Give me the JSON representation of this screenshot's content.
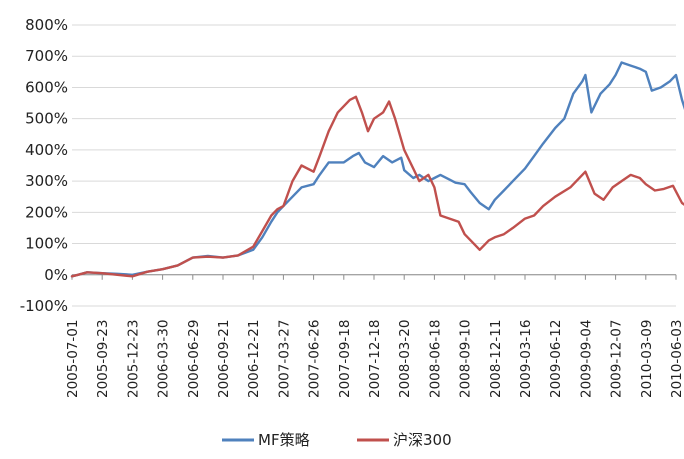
{
  "chart_data": {
    "type": "line",
    "title": "",
    "xlabel": "",
    "ylabel": "",
    "ylim": [
      -100,
      800
    ],
    "ytick_labels": [
      "-100%",
      "0%",
      "100%",
      "200%",
      "300%",
      "400%",
      "500%",
      "600%",
      "700%",
      "800%"
    ],
    "x": [
      "2005-07-01",
      "2005-09-23",
      "2005-12-23",
      "2006-03-30",
      "2006-06-29",
      "2006-09-21",
      "2006-12-21",
      "2007-03-27",
      "2007-06-26",
      "2007-09-18",
      "2007-12-18",
      "2008-03-20",
      "2008-06-18",
      "2008-09-10",
      "2008-12-11",
      "2009-03-16",
      "2009-06-12",
      "2009-09-04",
      "2009-12-07",
      "2010-03-09",
      "2010-06-03"
    ],
    "grid": true,
    "legend_position": "bottom",
    "series": [
      {
        "name": "MF策略",
        "color": "#4f81bd",
        "values": [
          [
            0,
            -5
          ],
          [
            0.2,
            0
          ],
          [
            0.5,
            8
          ],
          [
            1,
            5
          ],
          [
            1.5,
            3
          ],
          [
            2,
            0
          ],
          [
            2.5,
            10
          ],
          [
            3,
            18
          ],
          [
            3.5,
            30
          ],
          [
            4,
            55
          ],
          [
            4.5,
            60
          ],
          [
            5,
            55
          ],
          [
            5.5,
            62
          ],
          [
            6,
            80
          ],
          [
            6.3,
            120
          ],
          [
            6.6,
            170
          ],
          [
            6.8,
            200
          ],
          [
            7,
            220
          ],
          [
            7.3,
            250
          ],
          [
            7.6,
            280
          ],
          [
            8,
            290
          ],
          [
            8.2,
            320
          ],
          [
            8.5,
            360
          ],
          [
            8.8,
            360
          ],
          [
            9,
            360
          ],
          [
            9.3,
            380
          ],
          [
            9.5,
            390
          ],
          [
            9.7,
            360
          ],
          [
            10,
            345
          ],
          [
            10.3,
            380
          ],
          [
            10.6,
            360
          ],
          [
            10.9,
            375
          ],
          [
            11,
            335
          ],
          [
            11.3,
            310
          ],
          [
            11.5,
            320
          ],
          [
            11.8,
            300
          ],
          [
            12,
            310
          ],
          [
            12.2,
            320
          ],
          [
            12.5,
            305
          ],
          [
            12.7,
            295
          ],
          [
            13,
            290
          ],
          [
            13.2,
            265
          ],
          [
            13.5,
            230
          ],
          [
            13.8,
            210
          ],
          [
            14,
            240
          ],
          [
            14.3,
            270
          ],
          [
            14.6,
            300
          ],
          [
            15,
            340
          ],
          [
            15.3,
            380
          ],
          [
            15.6,
            420
          ],
          [
            16,
            470
          ],
          [
            16.3,
            500
          ],
          [
            16.6,
            580
          ],
          [
            16.9,
            620
          ],
          [
            17,
            640
          ],
          [
            17.2,
            520
          ],
          [
            17.5,
            580
          ],
          [
            17.8,
            610
          ],
          [
            18,
            640
          ],
          [
            18.2,
            680
          ],
          [
            18.5,
            670
          ],
          [
            18.8,
            660
          ],
          [
            19,
            650
          ],
          [
            19.2,
            590
          ],
          [
            19.5,
            600
          ],
          [
            19.8,
            620
          ],
          [
            20,
            640
          ],
          [
            20.2,
            560
          ],
          [
            20.4,
            500
          ],
          [
            20.6,
            520
          ],
          [
            20.8,
            515
          ],
          [
            21,
            520
          ]
        ]
      },
      {
        "name": "沪深300",
        "color": "#c0504d",
        "values": [
          [
            0,
            -5
          ],
          [
            0.2,
            0
          ],
          [
            0.5,
            8
          ],
          [
            1,
            5
          ],
          [
            1.5,
            0
          ],
          [
            2,
            -5
          ],
          [
            2.5,
            10
          ],
          [
            3,
            18
          ],
          [
            3.5,
            30
          ],
          [
            4,
            55
          ],
          [
            4.5,
            58
          ],
          [
            5,
            55
          ],
          [
            5.5,
            62
          ],
          [
            6,
            90
          ],
          [
            6.3,
            140
          ],
          [
            6.6,
            190
          ],
          [
            6.8,
            210
          ],
          [
            7,
            220
          ],
          [
            7.3,
            300
          ],
          [
            7.6,
            350
          ],
          [
            8,
            330
          ],
          [
            8.2,
            380
          ],
          [
            8.5,
            460
          ],
          [
            8.8,
            520
          ],
          [
            9,
            540
          ],
          [
            9.2,
            560
          ],
          [
            9.4,
            570
          ],
          [
            9.6,
            520
          ],
          [
            9.8,
            460
          ],
          [
            10,
            500
          ],
          [
            10.3,
            520
          ],
          [
            10.5,
            555
          ],
          [
            10.7,
            500
          ],
          [
            11,
            400
          ],
          [
            11.3,
            340
          ],
          [
            11.5,
            300
          ],
          [
            11.8,
            320
          ],
          [
            12,
            280
          ],
          [
            12.2,
            190
          ],
          [
            12.5,
            180
          ],
          [
            12.8,
            170
          ],
          [
            13,
            130
          ],
          [
            13.3,
            100
          ],
          [
            13.5,
            80
          ],
          [
            13.8,
            110
          ],
          [
            14,
            120
          ],
          [
            14.3,
            130
          ],
          [
            14.6,
            150
          ],
          [
            15,
            180
          ],
          [
            15.3,
            190
          ],
          [
            15.6,
            220
          ],
          [
            16,
            250
          ],
          [
            16.5,
            280
          ],
          [
            17,
            330
          ],
          [
            17.3,
            260
          ],
          [
            17.6,
            240
          ],
          [
            17.9,
            280
          ],
          [
            18.2,
            300
          ],
          [
            18.5,
            320
          ],
          [
            18.8,
            310
          ],
          [
            19,
            290
          ],
          [
            19.3,
            270
          ],
          [
            19.6,
            275
          ],
          [
            19.9,
            285
          ],
          [
            20.2,
            230
          ],
          [
            20.5,
            210
          ],
          [
            20.8,
            205
          ],
          [
            21,
            190
          ]
        ]
      }
    ]
  }
}
